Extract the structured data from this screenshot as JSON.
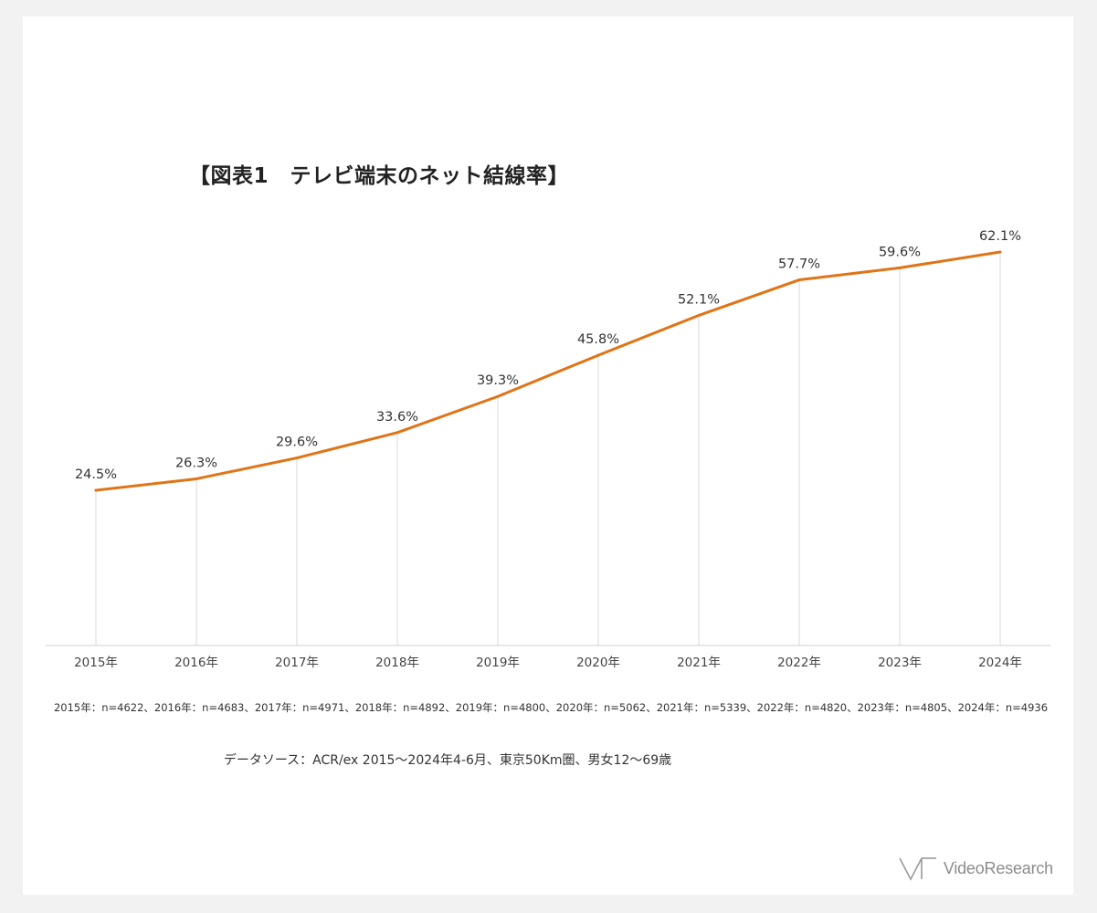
{
  "chart_data": {
    "type": "line",
    "title": "【図表1　テレビ端末のネット結線率】",
    "categories": [
      "2015年",
      "2016年",
      "2017年",
      "2018年",
      "2019年",
      "2020年",
      "2021年",
      "2022年",
      "2023年",
      "2024年"
    ],
    "series": [
      {
        "values": [
          24.5,
          26.3,
          29.6,
          33.6,
          39.3,
          45.8,
          52.1,
          57.7,
          59.6,
          62.1
        ],
        "labels": [
          "24.5%",
          "26.3%",
          "29.6%",
          "33.6%",
          "39.3%",
          "45.8%",
          "52.1%",
          "57.7%",
          "59.6%",
          "62.1%"
        ],
        "color": "#e07416"
      }
    ],
    "ylim": [
      0,
      62.1
    ],
    "grid": "vertical",
    "data_labels": true,
    "legend": "none"
  },
  "notes": {
    "sample": "2015年：n=4622、2016年：n=4683、2017年：n=4971、2018年：n=4892、2019年：n=4800、2020年：n=5062、2021年：n=5339、2022年：n=4820、2023年：n=4805、2024年：n=4936",
    "source": "データソース：ACR/ex 2015～2024年4-6月、東京50Km圏、男女12～69歳"
  },
  "logo": {
    "text": "VideoResearch",
    "icon": "videoresearch-logo-icon"
  },
  "colors": {
    "line": "#e07416",
    "gridline": "#d9d9d9",
    "axis": "#cfcfcf",
    "background": "#f2f2f2",
    "card": "#ffffff"
  }
}
